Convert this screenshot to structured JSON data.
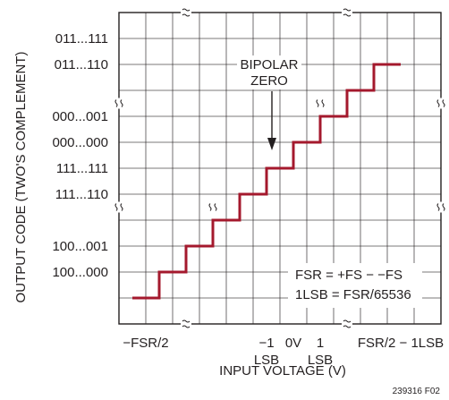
{
  "chart_data": {
    "type": "line",
    "step": true,
    "ylabel": "OUTPUT CODE (TWO'S COMPLEMENT)",
    "xlabel": "INPUT VOLTAGE (V)",
    "y_codes": [
      "011...111",
      "011...110",
      "000...001",
      "000...000",
      "111...111",
      "111...110",
      "100...001",
      "100...000"
    ],
    "x_tick_labels": [
      {
        "line1": "−FSR/2",
        "line2": ""
      },
      {
        "line1": "−1",
        "line2": "LSB"
      },
      {
        "line1": "0V",
        "line2": ""
      },
      {
        "line1": "1",
        "line2": "LSB"
      },
      {
        "line1": "FSR/2 − 1LSB",
        "line2": ""
      }
    ],
    "annotation": {
      "line1": "BIPOLAR",
      "line2": "ZERO"
    },
    "notes": [
      "FSR = +FS − −FS",
      "1LSB = FSR/65536"
    ],
    "grid": true,
    "axis_breaks": true,
    "series_color": "#a4192d",
    "steps": [
      {
        "from": "−FSR/2",
        "code": "100...000"
      },
      {
        "from": "−FSR/2 + 1LSB",
        "code": "100...001"
      },
      {
        "from": "",
        "code": ""
      },
      {
        "from": "",
        "code": "111...110"
      },
      {
        "from": "−1 LSB",
        "code": "111...111"
      },
      {
        "from": "0V",
        "code": "000...000"
      },
      {
        "from": "1 LSB",
        "code": "000...001"
      },
      {
        "from": "",
        "code": ""
      },
      {
        "from": "",
        "code": "011...110"
      },
      {
        "from": "FSR/2 − 1LSB",
        "code": "011...111"
      }
    ]
  },
  "figure_id": "239316 F02"
}
